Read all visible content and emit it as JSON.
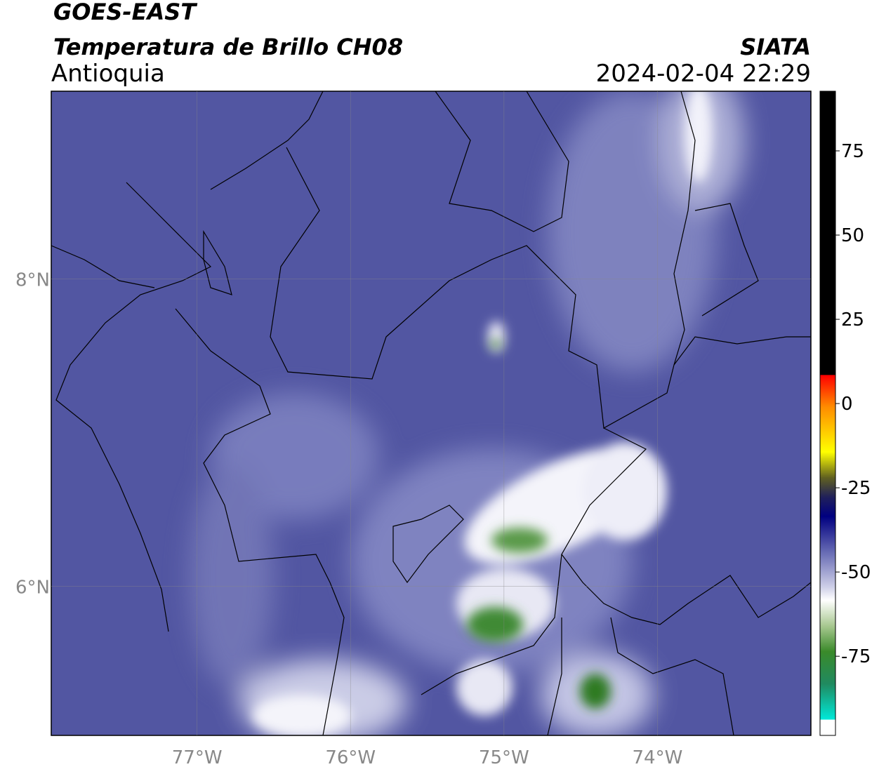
{
  "map": {
    "title": "GOES-EAST",
    "subtitle": "Temperatura de Brillo CH08",
    "region": "Antioquia",
    "source": "SIATA",
    "timestamp": "2024-02-04 22:29",
    "xlim": [
      -77.95,
      -73.0
    ],
    "ylim": [
      5.03,
      9.22
    ],
    "xticks": [
      {
        "value": -77,
        "label": "77°W"
      },
      {
        "value": -76,
        "label": "76°W"
      },
      {
        "value": -75,
        "label": "75°W"
      },
      {
        "value": -74,
        "label": "74°W"
      }
    ],
    "yticks": [
      {
        "value": 6,
        "label": "6°N"
      },
      {
        "value": 8,
        "label": "8°N"
      }
    ],
    "grid": true,
    "colorbar": {
      "lim": [
        -98.5,
        92.7
      ],
      "ticks": [
        75,
        50,
        25,
        0,
        -25,
        -50,
        -75
      ]
    }
  }
}
